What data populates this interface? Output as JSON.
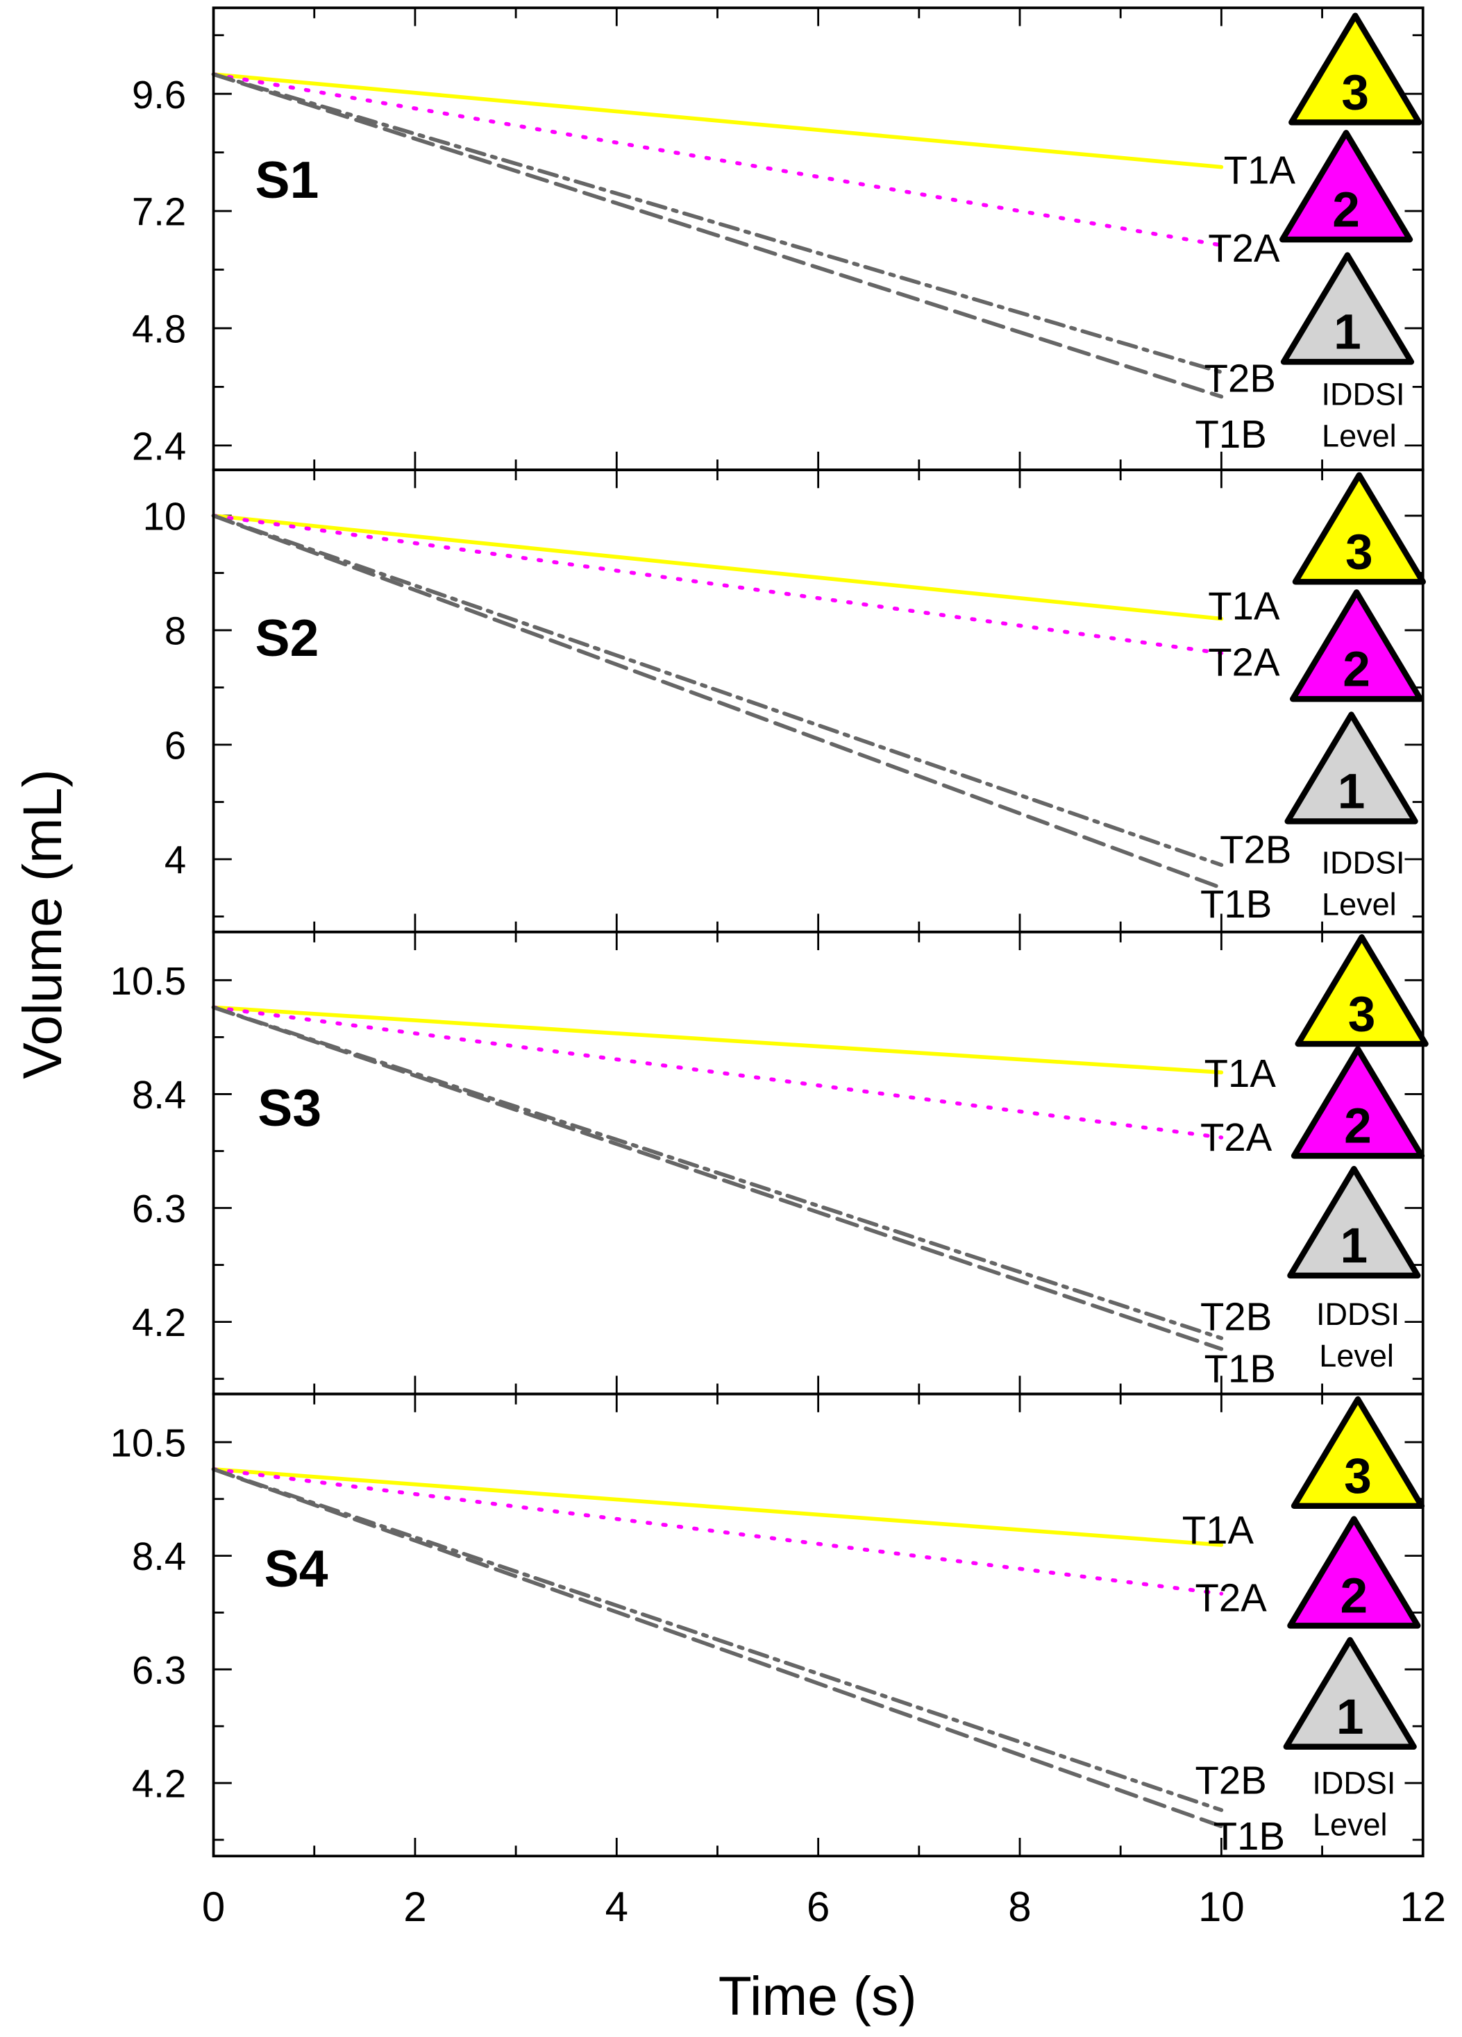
{
  "chart_data": {
    "type": "line",
    "xlabel": "Time (s)",
    "ylabel": "Volume (mL)",
    "xlim": [
      0,
      12
    ],
    "xticks": [
      "0",
      "2",
      "4",
      "6",
      "8",
      "10",
      "12"
    ],
    "legend_title": [
      "IDDSI",
      "Level"
    ],
    "iddsi_levels": [
      {
        "label": "3",
        "color": "#FFFF00"
      },
      {
        "label": "2",
        "color": "#FF00FF"
      },
      {
        "label": "1",
        "color": "#D3D3D3"
      }
    ],
    "series_styles": {
      "T1A": {
        "color": "#FFFF00",
        "dash": "solid"
      },
      "T2A": {
        "color": "#FF00FF",
        "dash": "dotted"
      },
      "T2B": {
        "color": "#666666",
        "dash": "dash-dot"
      },
      "T1B": {
        "color": "#666666",
        "dash": "dashed"
      }
    },
    "panels": [
      {
        "label": "S1",
        "ylim": [
          1.9,
          11.36
        ],
        "yticks": [
          "2.4",
          "4.8",
          "7.2",
          "9.6"
        ],
        "ytick_values": [
          2.4,
          4.8,
          7.2,
          9.6
        ],
        "series": [
          {
            "name": "T1A",
            "x": [
              0,
              10
            ],
            "y": [
              10.0,
              8.1
            ]
          },
          {
            "name": "T2A",
            "x": [
              0,
              10
            ],
            "y": [
              10.0,
              6.5
            ]
          },
          {
            "name": "T2B",
            "x": [
              0,
              10
            ],
            "y": [
              10.0,
              3.9
            ]
          },
          {
            "name": "T1B",
            "x": [
              0,
              10
            ],
            "y": [
              10.0,
              3.4
            ]
          }
        ]
      },
      {
        "label": "S2",
        "ylim": [
          2.73,
          10.8
        ],
        "yticks": [
          "4",
          "6",
          "8",
          "10"
        ],
        "ytick_values": [
          4,
          6,
          8,
          10
        ],
        "series": [
          {
            "name": "T1A",
            "x": [
              0,
              10
            ],
            "y": [
              10.0,
              8.2
            ]
          },
          {
            "name": "T2A",
            "x": [
              0,
              10
            ],
            "y": [
              10.0,
              7.6
            ]
          },
          {
            "name": "T2B",
            "x": [
              0,
              10
            ],
            "y": [
              10.0,
              3.9
            ]
          },
          {
            "name": "T1B",
            "x": [
              0,
              10
            ],
            "y": [
              10.0,
              3.5
            ]
          }
        ]
      },
      {
        "label": "S3",
        "ylim": [
          2.87,
          11.39
        ],
        "yticks": [
          "4.2",
          "6.3",
          "8.4",
          "10.5"
        ],
        "ytick_values": [
          4.2,
          6.3,
          8.4,
          10.5
        ],
        "series": [
          {
            "name": "T1A",
            "x": [
              0,
              10
            ],
            "y": [
              10.0,
              8.8
            ]
          },
          {
            "name": "T2A",
            "x": [
              0,
              10
            ],
            "y": [
              10.0,
              7.6
            ]
          },
          {
            "name": "T2B",
            "x": [
              0,
              10
            ],
            "y": [
              10.0,
              3.9
            ]
          },
          {
            "name": "T1B",
            "x": [
              0,
              10
            ],
            "y": [
              10.0,
              3.7
            ]
          }
        ]
      },
      {
        "label": "S4",
        "ylim": [
          2.85,
          11.39
        ],
        "yticks": [
          "4.2",
          "6.3",
          "8.4",
          "10.5"
        ],
        "ytick_values": [
          4.2,
          6.3,
          8.4,
          10.5
        ],
        "series": [
          {
            "name": "T1A",
            "x": [
              0,
              10
            ],
            "y": [
              10.0,
              8.6
            ]
          },
          {
            "name": "T2A",
            "x": [
              0,
              10
            ],
            "y": [
              10.0,
              7.7
            ]
          },
          {
            "name": "T2B",
            "x": [
              0,
              10
            ],
            "y": [
              10.0,
              3.7
            ]
          },
          {
            "name": "T1B",
            "x": [
              0,
              10
            ],
            "y": [
              10.0,
              3.4
            ]
          }
        ]
      }
    ]
  }
}
